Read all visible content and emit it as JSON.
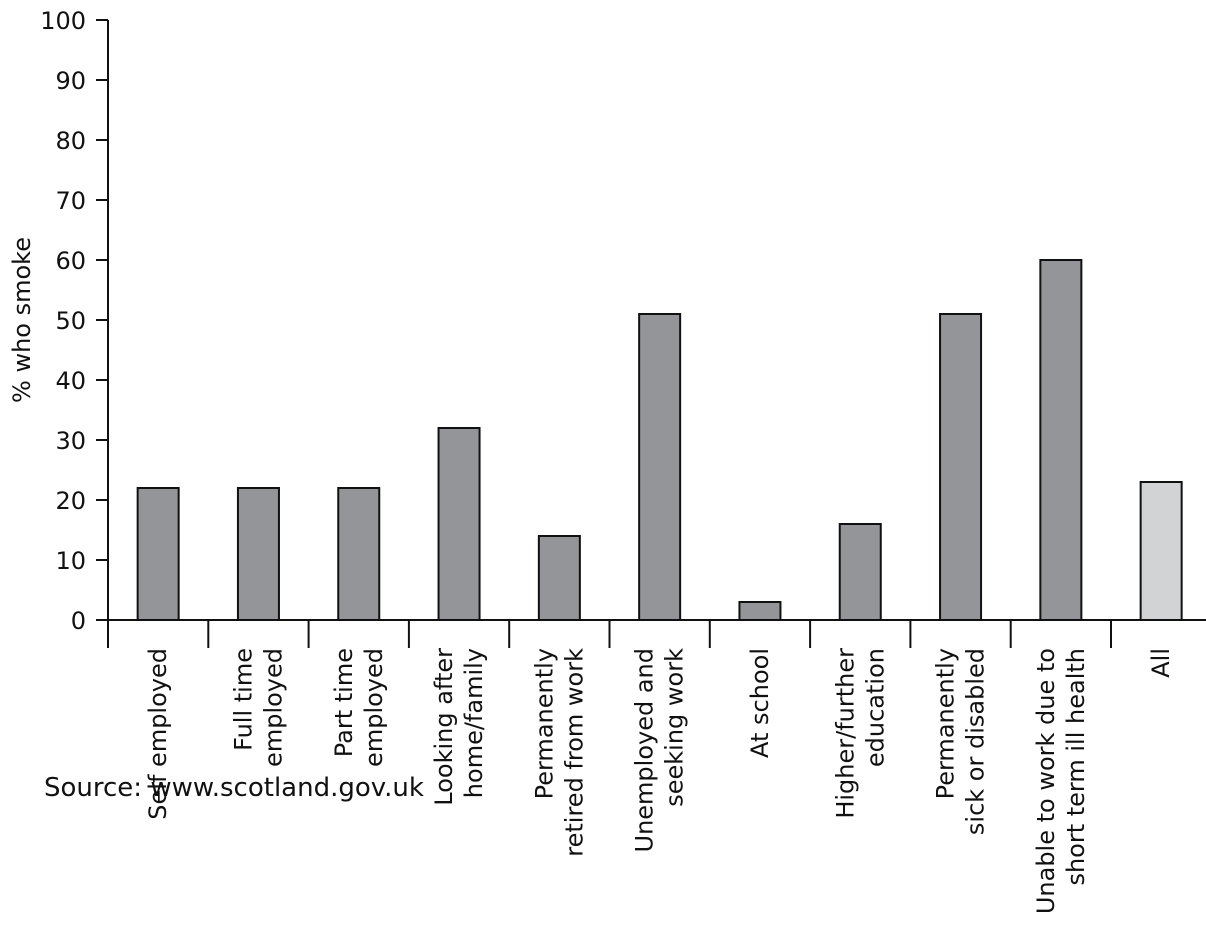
{
  "chart_data": {
    "type": "bar",
    "title": "",
    "xlabel": "",
    "ylabel": "% who smoke",
    "ylim": [
      0,
      100
    ],
    "yticks": [
      0,
      10,
      20,
      30,
      40,
      50,
      60,
      70,
      80,
      90,
      100
    ],
    "grid": false,
    "categories": [
      [
        "Self employed"
      ],
      [
        "Full time",
        "employed"
      ],
      [
        "Part time",
        "employed"
      ],
      [
        "Looking after",
        "home/family"
      ],
      [
        "Permanently",
        "retired from work"
      ],
      [
        "Unemployed and",
        "seeking work"
      ],
      [
        "At school"
      ],
      [
        "Higher/further",
        "education"
      ],
      [
        "Permanently",
        "sick or disabled"
      ],
      [
        "Unable to work due to",
        "short term ill health"
      ],
      [
        "All"
      ]
    ],
    "values": [
      22,
      22,
      22,
      32,
      14,
      51,
      3,
      16,
      51,
      60,
      23
    ],
    "bar_colors": [
      "#939598",
      "#939598",
      "#939598",
      "#939598",
      "#939598",
      "#939598",
      "#939598",
      "#939598",
      "#939598",
      "#939598",
      "#d1d3d4"
    ]
  },
  "source": "Source: www.scotland.gov.uk"
}
